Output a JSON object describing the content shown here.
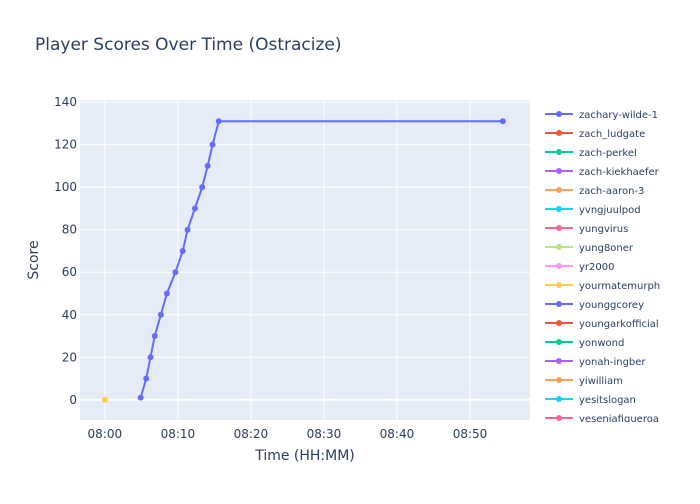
{
  "chart_data": {
    "type": "line",
    "title": "Player Scores Over Time (Ostracize)",
    "xlabel": "Time (HH:MM)",
    "ylabel": "Score",
    "xlim": [
      "07:56:36",
      "08:58:13"
    ],
    "ylim": [
      -9.5,
      141
    ],
    "xticks": [
      "08:00",
      "08:10",
      "08:20",
      "08:30",
      "08:40",
      "08:50"
    ],
    "yticks": [
      0,
      20,
      40,
      60,
      80,
      100,
      120,
      140
    ],
    "grid": true,
    "legend_placement": "right",
    "series": [
      {
        "name": "zachary-wilde-1",
        "color": "#636efa",
        "x": [
          "08:04:54",
          "08:05:40",
          "08:06:15",
          "08:06:50",
          "08:07:40",
          "08:08:30",
          "08:09:40",
          "08:10:40",
          "08:11:20",
          "08:12:20",
          "08:13:20",
          "08:14:05",
          "08:14:45",
          "08:15:36",
          "08:54:30"
        ],
        "y": [
          1,
          10,
          20,
          30,
          40,
          50,
          60,
          70,
          80,
          90,
          100,
          110,
          120,
          131,
          131
        ]
      },
      {
        "name": "zach_ludgate",
        "color": "#EF553B",
        "x": [],
        "y": []
      },
      {
        "name": "zach-perkel",
        "color": "#00cc96",
        "x": [],
        "y": []
      },
      {
        "name": "zach-kiekhaefer",
        "color": "#ab63fa",
        "x": [],
        "y": []
      },
      {
        "name": "zach-aaron-3",
        "color": "#FFA15A",
        "x": [],
        "y": []
      },
      {
        "name": "yvngjuulpod",
        "color": "#19d3f3",
        "x": [],
        "y": []
      },
      {
        "name": "yungvirus",
        "color": "#FF6692",
        "x": [],
        "y": []
      },
      {
        "name": "yung8oner",
        "color": "#B6E880",
        "x": [],
        "y": []
      },
      {
        "name": "yr2000",
        "color": "#FF97FF",
        "x": [],
        "y": []
      },
      {
        "name": "yourmatemurph",
        "color": "#FECB52",
        "x": [
          "08:00:00"
        ],
        "y": [
          0
        ]
      },
      {
        "name": "younggcorey",
        "color": "#636efa",
        "x": [],
        "y": []
      },
      {
        "name": "youngarkofficial",
        "color": "#EF553B",
        "x": [],
        "y": []
      },
      {
        "name": "yonwond",
        "color": "#00cc96",
        "x": [],
        "y": []
      },
      {
        "name": "yonah-ingber",
        "color": "#ab63fa",
        "x": [],
        "y": []
      },
      {
        "name": "yiwilliam",
        "color": "#FFA15A",
        "x": [],
        "y": []
      },
      {
        "name": "yesitslogan",
        "color": "#19d3f3",
        "x": [],
        "y": []
      },
      {
        "name": "yeseniafigueroa",
        "color": "#FF6692",
        "x": [],
        "y": []
      }
    ]
  }
}
